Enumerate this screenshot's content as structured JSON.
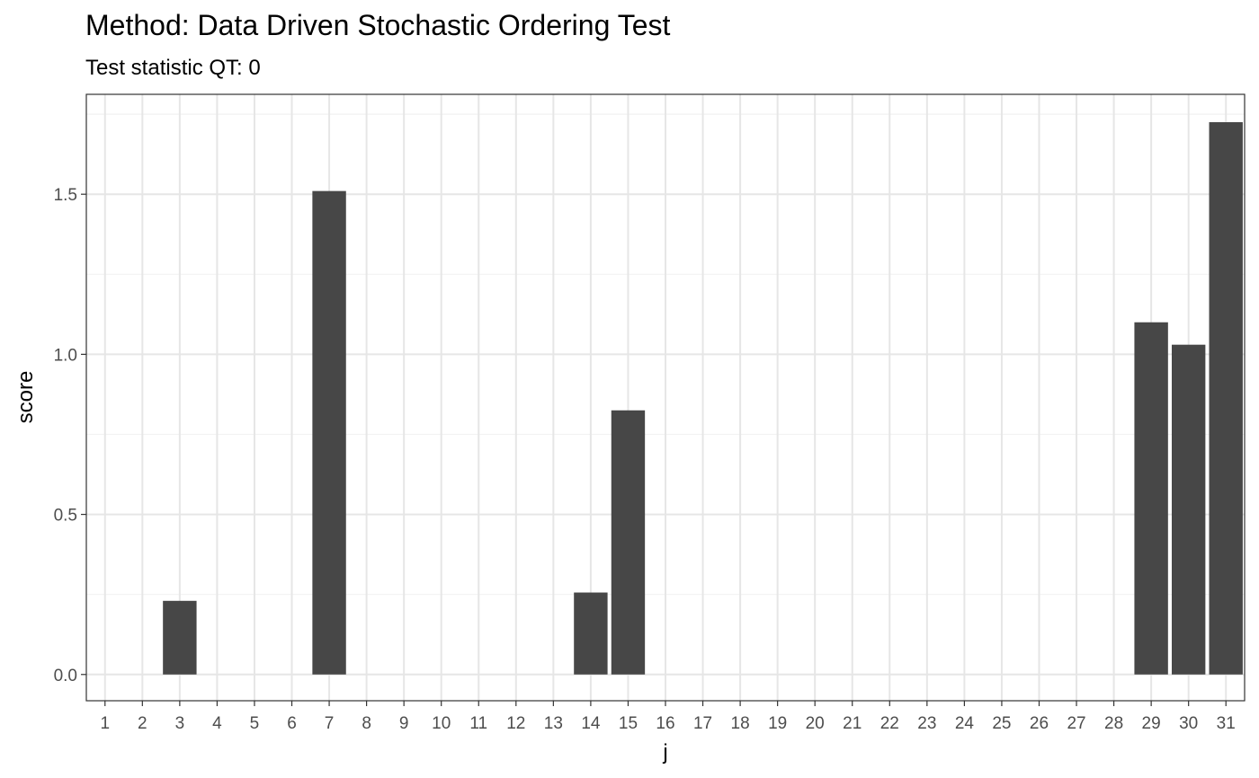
{
  "chart_data": {
    "type": "bar",
    "title": "Method: Data Driven Stochastic Ordering Test",
    "subtitle": "Test statistic QT: 0",
    "xlabel": "j",
    "ylabel": "score",
    "categories": [
      "1",
      "2",
      "3",
      "4",
      "5",
      "6",
      "7",
      "8",
      "9",
      "10",
      "11",
      "12",
      "13",
      "14",
      "15",
      "16",
      "17",
      "18",
      "19",
      "20",
      "21",
      "22",
      "23",
      "24",
      "25",
      "26",
      "27",
      "28",
      "29",
      "30",
      "31"
    ],
    "values": [
      0,
      0,
      0.23,
      0,
      0,
      0,
      1.51,
      0,
      0,
      0,
      0,
      0,
      0,
      0.256,
      0.825,
      0,
      0,
      0,
      0,
      0,
      0,
      0,
      0,
      0,
      0,
      0,
      0,
      0,
      1.1,
      1.03,
      1.725
    ],
    "ylim": [
      -0.082,
      1.812
    ],
    "yticks": [
      "0.0",
      "0.5",
      "1.0",
      "1.5"
    ],
    "grid": true,
    "legend": "none",
    "colors": {
      "bar": "#474747",
      "grid_major": "#e6e6e6",
      "grid_minor": "#f2f2f2",
      "panel_border": "#333333",
      "tick_text": "#4d4d4d"
    }
  }
}
